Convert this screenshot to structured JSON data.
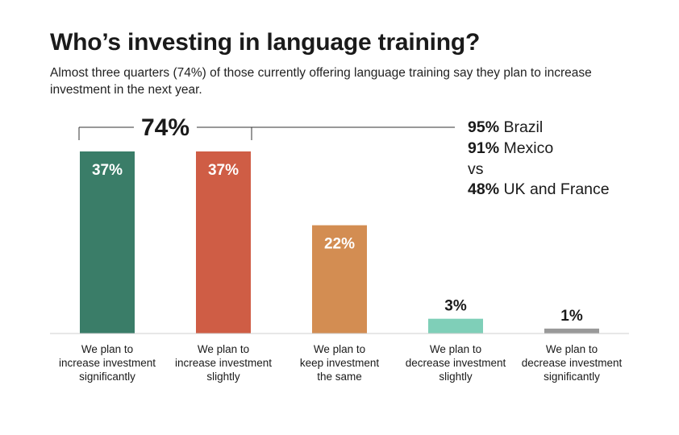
{
  "title": "Who’s investing in language training?",
  "subtitle": "Almost three quarters (74%) of those currently offering language training say they plan to increase investment in the next year.",
  "bracket_label": "74%",
  "notes": [
    {
      "value": "95%",
      "text": " Brazil"
    },
    {
      "value": "91%",
      "text": " Mexico"
    },
    {
      "value": "",
      "text": "vs"
    },
    {
      "value": "48%",
      "text": " UK and France"
    }
  ],
  "chart_data": {
    "type": "bar",
    "title": "Who’s investing in language training?",
    "xlabel": "",
    "ylabel": "",
    "ylim": [
      0,
      37
    ],
    "grid": false,
    "legend": "none",
    "categories": [
      [
        "We plan to",
        "increase investment",
        "significantly"
      ],
      [
        "We plan to",
        "increase investment",
        "slightly"
      ],
      [
        "We plan to",
        "keep investment",
        "the same"
      ],
      [
        "We plan to",
        "decrease investment",
        "slightly"
      ],
      [
        "We plan to",
        "decrease investment",
        "significantly"
      ]
    ],
    "values": [
      37,
      37,
      22,
      3,
      1
    ],
    "value_labels": [
      "37%",
      "37%",
      "22%",
      "3%",
      "1%"
    ],
    "colors": [
      "#3a7d68",
      "#cf5d45",
      "#d38d52",
      "#7fcfb8",
      "#999999"
    ],
    "label_inside": [
      true,
      true,
      true,
      false,
      false
    ]
  }
}
